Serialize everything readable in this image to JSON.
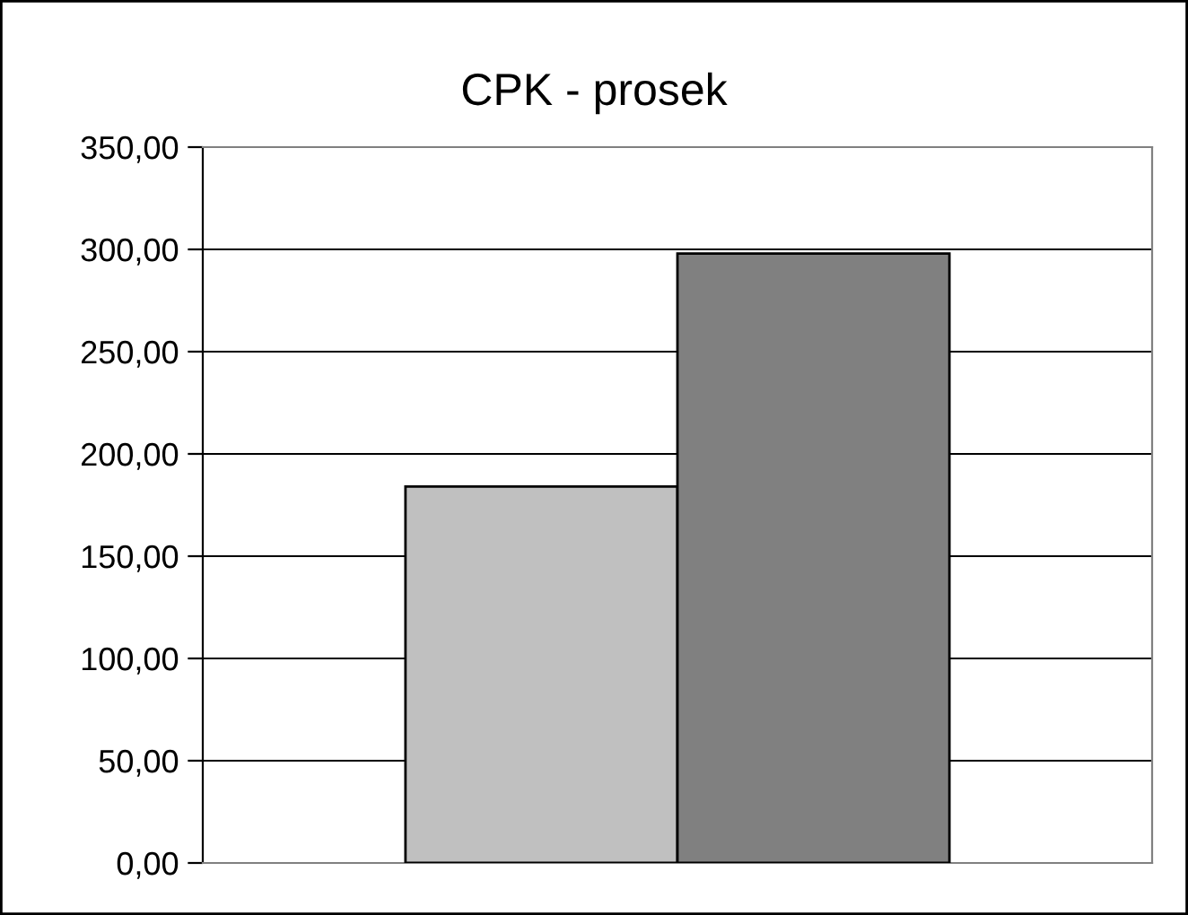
{
  "chart_data": {
    "type": "bar",
    "title": "CPK - prosek",
    "categories": [
      null
    ],
    "series": [
      {
        "color": "#c0c0c0",
        "values": [
          184
        ]
      },
      {
        "color": "#808080",
        "values": [
          298
        ]
      }
    ],
    "ylim": [
      0,
      350
    ],
    "yticks": [
      {
        "value": 0,
        "label": "0,00"
      },
      {
        "value": 50,
        "label": "50,00"
      },
      {
        "value": 100,
        "label": "100,00"
      },
      {
        "value": 150,
        "label": "150,00"
      },
      {
        "value": 200,
        "label": "200,00"
      },
      {
        "value": 250,
        "label": "250,00"
      },
      {
        "value": 300,
        "label": "300,00"
      },
      {
        "value": 350,
        "label": "350,00"
      }
    ],
    "grid": "y"
  }
}
